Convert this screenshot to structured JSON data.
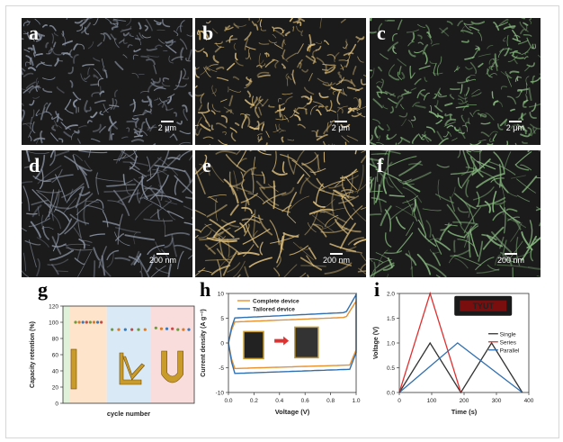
{
  "sem_panels": [
    {
      "label": "a",
      "scale": "2 μm",
      "tint": "#8a93a3"
    },
    {
      "label": "b",
      "scale": "2 μm",
      "tint": "#d9bb7a"
    },
    {
      "label": "c",
      "scale": "2 μm",
      "tint": "#86b77e"
    },
    {
      "label": "d",
      "scale": "200 nm",
      "tint": "#8a93a3"
    },
    {
      "label": "e",
      "scale": "200 nm",
      "tint": "#d9bb7a"
    },
    {
      "label": "f",
      "scale": "200 nm",
      "tint": "#86b77e"
    }
  ],
  "chart_data": [
    {
      "label": "g",
      "type": "scatter",
      "ylabel": "Capacity retention (%)",
      "xlabel": "cycle number",
      "ylim": [
        0,
        120
      ],
      "yticks": [
        "0",
        "20",
        "40",
        "60",
        "80",
        "100",
        "120"
      ],
      "regions": [
        {
          "color": "#ffe4cc",
          "values": [
            100,
            100,
            100,
            100,
            100,
            100,
            100,
            100
          ],
          "shape": "I"
        },
        {
          "color": "#d9e9f5",
          "values": [
            91,
            91,
            91,
            91,
            91,
            91
          ],
          "shape": "L"
        },
        {
          "color": "#f9dcdc",
          "values": [
            93,
            92,
            92,
            92,
            91,
            91,
            91
          ],
          "shape": "U"
        }
      ]
    },
    {
      "label": "h",
      "type": "line",
      "xlabel": "Voltage (V)",
      "ylabel": "Current density (A g⁻¹)",
      "xlim": [
        0.0,
        1.0
      ],
      "ylim": [
        -10,
        10
      ],
      "xticks": [
        "0.0",
        "0.2",
        "0.4",
        "0.6",
        "0.8",
        "1.0"
      ],
      "yticks": [
        "-10",
        "-5",
        "0",
        "5",
        "10"
      ],
      "series": [
        {
          "name": "Complete device",
          "color": "#e8902e"
        },
        {
          "name": "Tailored device",
          "color": "#2f6fb0"
        }
      ]
    },
    {
      "label": "i",
      "type": "line",
      "xlabel": "Time (s)",
      "ylabel": "Voltage (V)",
      "xlim": [
        0,
        400
      ],
      "ylim": [
        0,
        2.0
      ],
      "xticks": [
        "0",
        "100",
        "200",
        "300",
        "400"
      ],
      "yticks": [
        "0.0",
        "0.5",
        "1.0",
        "1.5",
        "2.0"
      ],
      "inset_text": "TYUT",
      "series": [
        {
          "name": "Single",
          "color": "#333333",
          "x": [
            0,
            95,
            190,
            285,
            380
          ],
          "y": [
            0,
            1.0,
            0,
            1.0,
            0
          ]
        },
        {
          "name": "Series",
          "color": "#e03030",
          "x": [
            0,
            95,
            190
          ],
          "y": [
            0,
            2.0,
            0
          ]
        },
        {
          "name": "Parallel",
          "color": "#2f6fb0",
          "x": [
            0,
            180,
            380
          ],
          "y": [
            0,
            1.0,
            0
          ]
        }
      ]
    }
  ]
}
